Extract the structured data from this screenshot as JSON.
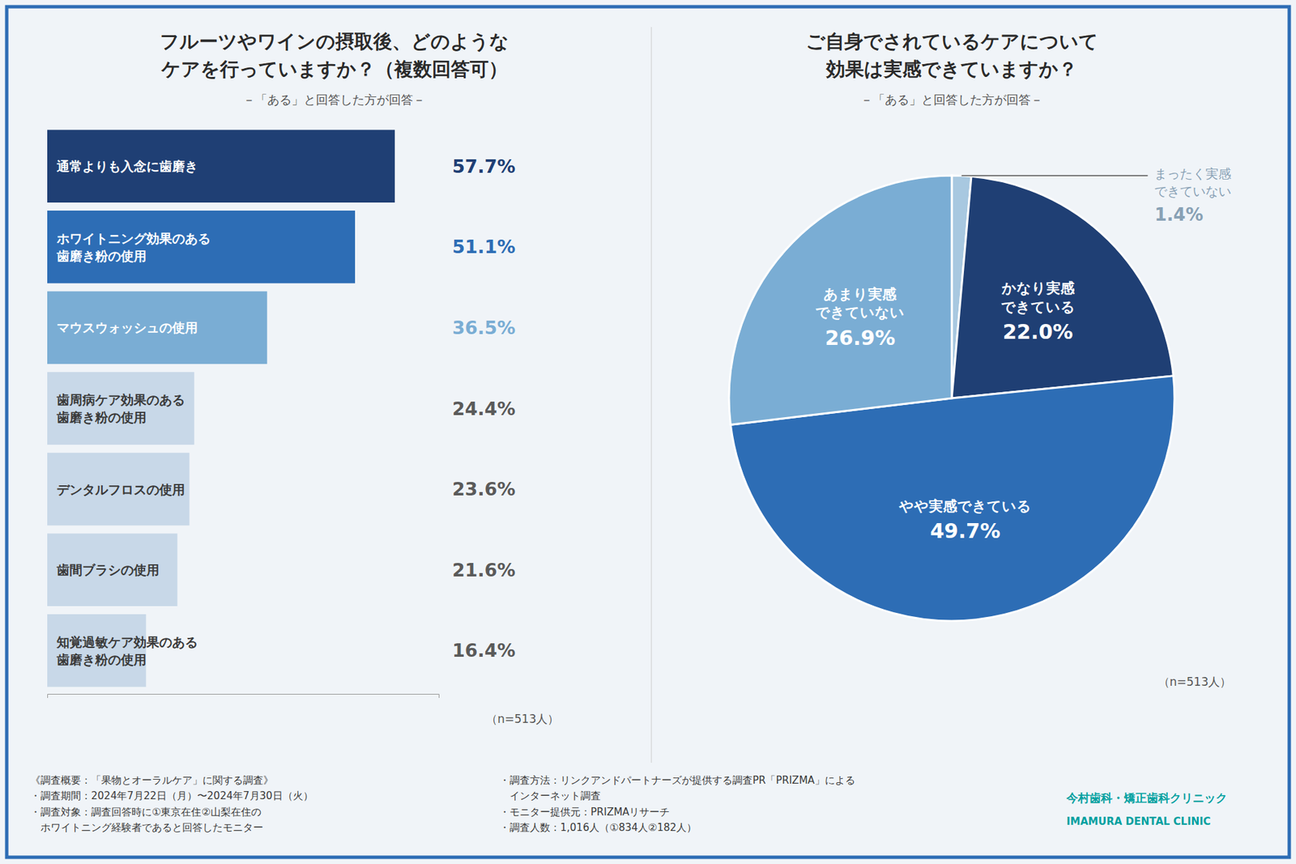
{
  "chart_data": [
    {
      "type": "bar",
      "orientation": "horizontal",
      "title": "フルーツやワインの摂取後、どのような\nケアを行っていますか？（複数回答可）",
      "subtitle": "－「ある」と回答した方が回答－",
      "categories": [
        "通常よりも入念に歯磨き",
        "ホワイトニング効果のある\n歯磨き粉の使用",
        "マウスウォッシュの使用",
        "歯周病ケア効果のある\n歯磨き粉の使用",
        "デンタルフロスの使用",
        "歯間ブラシの使用",
        "知覚過敏ケア効果のある\n歯磨き粉の使用"
      ],
      "values": [
        57.7,
        51.1,
        36.5,
        24.4,
        23.6,
        21.6,
        16.4
      ],
      "value_labels": [
        "57.7%",
        "51.1%",
        "36.5%",
        "24.4%",
        "23.6%",
        "21.6%",
        "16.4%"
      ],
      "colors": [
        "#1f3f74",
        "#2d6db5",
        "#7aadd4",
        "#c8d8e8",
        "#c8d8e8",
        "#c8d8e8",
        "#c8d8e8"
      ],
      "xlim": [
        0,
        65
      ],
      "tick_labels": false,
      "grid": false,
      "data_labels": true,
      "annotations": [
        "（n=513人）"
      ]
    },
    {
      "type": "pie",
      "title": "ご自身でされているケアについて\n効果は実感できていますか？",
      "subtitle": "－「ある」と回答した方が回答－",
      "categories": [
        "まったく実感\nできていない",
        "かなり実感\nできている",
        "やや実感できている",
        "あまり実感\nできていない"
      ],
      "values": [
        1.4,
        22.0,
        49.7,
        26.9
      ],
      "value_labels": [
        "1.4%",
        "22.0%",
        "49.7%",
        "26.9%"
      ],
      "colors": [
        "#a8c8e0",
        "#1f3f74",
        "#2d6db5",
        "#7aadd4"
      ],
      "data_labels": true,
      "annotations": [
        "（n=513人）"
      ]
    }
  ],
  "footer": {
    "notes": [
      "《調査概要：「果物とオーラルケア」に関する調査》\n・調査期間：2024年7月22日（月）〜2024年7月30日（火）\n・調査対象：調査回答時に①東京在住②山梨在住の\n　ホワイトニング経験者であると回答したモニター",
      "・調査方法：リンクアンドパートナーズが提供する調査PR「PRIZMA」による\n　インターネット調査\n・モニター提供元：PRIZMAリサーチ\n・調査人数：1,016人（①834人②182人）"
    ],
    "credit": [
      "今村歯科・矯正歯科クリニック",
      "IMAMURA DENTAL CLINIC"
    ]
  }
}
